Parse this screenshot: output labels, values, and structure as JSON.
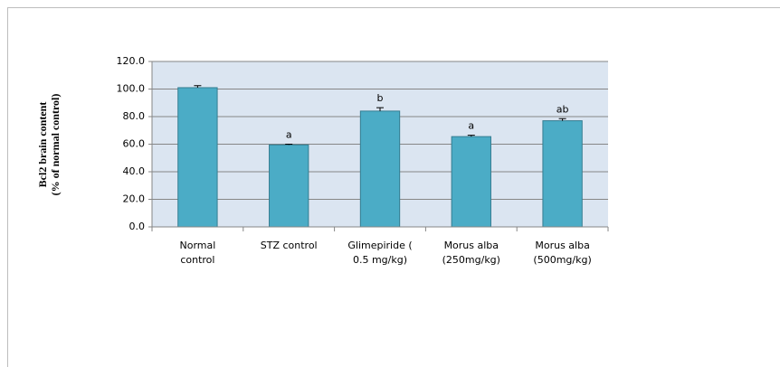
{
  "chart_data": {
    "type": "bar",
    "ylabel": [
      "Bcl2 brain content",
      "(% of normal control)"
    ],
    "categories": [
      [
        "Normal",
        "control"
      ],
      [
        "STZ control"
      ],
      [
        "Glimepiride (",
        "0.5 mg/kg)"
      ],
      [
        "Morus alba",
        "(250mg/kg)"
      ],
      [
        "Morus alba",
        "(500mg/kg)"
      ]
    ],
    "values": [
      101,
      59.5,
      84,
      65.5,
      77
    ],
    "errors": [
      1.5,
      0.5,
      2.5,
      1,
      1.5
    ],
    "annotations": [
      null,
      "a",
      "b",
      "a",
      "ab"
    ],
    "color": "#4bacc6",
    "ylim": [
      0,
      120
    ],
    "yticks": [
      {
        "value": 0,
        "label": "0.0"
      },
      {
        "value": 20,
        "label": "20.0"
      },
      {
        "value": 40,
        "label": "40.0"
      },
      {
        "value": 60,
        "label": "60.0"
      },
      {
        "value": 80,
        "label": "80.0"
      },
      {
        "value": 100,
        "label": "100.0"
      },
      {
        "value": 120,
        "label": "120.0"
      }
    ],
    "grid": true
  }
}
